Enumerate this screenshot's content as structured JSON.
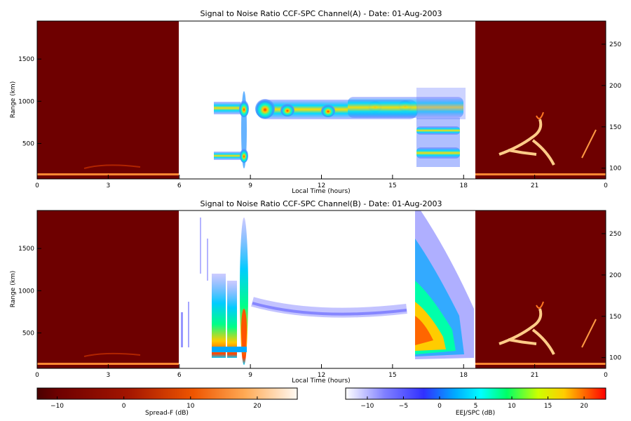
{
  "chart_data": [
    {
      "type": "heatmap",
      "title": "Signal to Noise Ratio CCF-SPC Channel(A) - Date: 01-Aug-2003",
      "xlabel": "Local Time (hours)",
      "ylabel": "Range (km)",
      "xlim": [
        0,
        24
      ],
      "ylim": [
        80,
        1950
      ],
      "xticks": [
        "0",
        "3",
        "6",
        "9",
        "12",
        "15",
        "18",
        "21",
        "0"
      ],
      "xtick_values": [
        0,
        3,
        6,
        9,
        12,
        15,
        18,
        21,
        24
      ],
      "yticks": [
        500,
        1000,
        1500
      ],
      "right_axis": {
        "ylim": [
          87,
          278
        ],
        "ticks": [
          100,
          150,
          200,
          250
        ]
      },
      "regions": [
        {
          "name": "spread-f-night",
          "x": [
            0,
            6
          ],
          "colormap": "spread-f"
        },
        {
          "name": "eej-spc-day",
          "x": [
            6,
            18.5
          ],
          "colormap": "eej-spc"
        },
        {
          "name": "spread-f-evening",
          "x": [
            18.5,
            24
          ],
          "colormap": "spread-f"
        }
      ],
      "echo_layers": [
        {
          "x": [
            7.5,
            8.3
          ],
          "y": [
            850,
            1000
          ],
          "snr_db": 3
        },
        {
          "x": [
            7.5,
            8.7
          ],
          "y": [
            310,
            380
          ],
          "snr_db": 2
        },
        {
          "x": [
            8.75,
            8.75
          ],
          "y": [
            200,
            1150
          ],
          "snr_db": 5
        },
        {
          "x": [
            9.5,
            16
          ],
          "y": [
            840,
            1010
          ],
          "snr_db": 12
        },
        {
          "x": [
            16,
            18.4
          ],
          "y": [
            200,
            1150
          ],
          "snr_db": 6
        }
      ]
    },
    {
      "type": "heatmap",
      "title": "Signal to Noise Ratio CCF-SPC Channel(B) - Date: 01-Aug-2003",
      "xlabel": "Local Time (hours)",
      "ylabel": "Range (km)",
      "xlim": [
        0,
        24
      ],
      "ylim": [
        80,
        1950
      ],
      "xticks": [
        "0",
        "3",
        "6",
        "9",
        "12",
        "15",
        "18",
        "21",
        "0"
      ],
      "xtick_values": [
        0,
        3,
        6,
        9,
        12,
        15,
        18,
        21,
        24
      ],
      "yticks": [
        500,
        1000,
        1500
      ],
      "right_axis": {
        "ylim": [
          87,
          278
        ],
        "ticks": [
          100,
          150,
          200,
          250
        ]
      },
      "regions": [
        {
          "name": "spread-f-night",
          "x": [
            0,
            6
          ],
          "colormap": "spread-f"
        },
        {
          "name": "eej-spc-day",
          "x": [
            6,
            18.5
          ],
          "colormap": "eej-spc"
        },
        {
          "name": "spread-f-evening",
          "x": [
            18.5,
            24
          ],
          "colormap": "spread-f"
        }
      ],
      "echo_layers": [
        {
          "x": [
            7.5,
            8.9
          ],
          "y": [
            200,
            1900
          ],
          "snr_db": 8
        },
        {
          "x": [
            9.5,
            15.5
          ],
          "y": [
            580,
            850
          ],
          "snr_db": -5
        },
        {
          "x": [
            16,
            18.4
          ],
          "y": [
            180,
            1950
          ],
          "snr_db": 10
        }
      ]
    }
  ],
  "colorbars": [
    {
      "label": "Spread-F (dB)",
      "range": [
        -13,
        26
      ],
      "ticks": [
        -10,
        0,
        10,
        20
      ],
      "colormap": "spread-f"
    },
    {
      "label": "EEJ/SPC (dB)",
      "range": [
        -13,
        23
      ],
      "ticks": [
        -10,
        -5,
        0,
        5,
        10,
        15,
        20
      ],
      "colormap": "eej-spc"
    }
  ],
  "colors": {
    "spread_f_bg": "#6e0000",
    "spread_f_low": "#000000",
    "spread_f_mid": "#ff6600",
    "spread_f_high": "#ffffff",
    "eej_low": "#ffffff",
    "eej_mid": "#00ffff",
    "eej_high": "#ff0000"
  }
}
